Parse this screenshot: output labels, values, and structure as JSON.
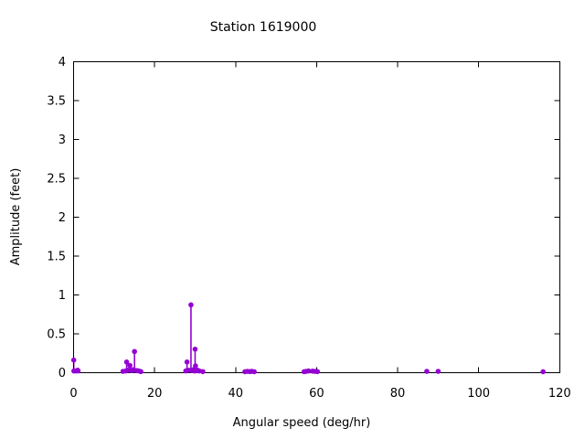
{
  "window": {
    "background": "#ffffff",
    "text_color": "#000000",
    "axis_color": "#000000"
  },
  "chart_data": {
    "type": "scatter",
    "style": "impulses+points",
    "title": "Station 1619000",
    "xlabel": "Angular speed (deg/hr)",
    "ylabel": "Amplitude (feet)",
    "xlim": [
      0,
      120
    ],
    "ylim": [
      0,
      4
    ],
    "x_ticks": [
      0,
      20,
      40,
      60,
      80,
      100,
      120
    ],
    "x_tick_labels": [
      "0",
      "20",
      "40",
      "60",
      "80",
      "100",
      "120"
    ],
    "y_ticks": [
      0,
      0.5,
      1,
      1.5,
      2,
      2.5,
      3,
      3.5,
      4
    ],
    "y_tick_labels": [
      "0",
      "0.5",
      "1",
      "1.5",
      "2",
      "2.5",
      "3",
      "3.5",
      "4"
    ],
    "grid": false,
    "legend": "none",
    "point_color": "#9400d3",
    "points": [
      [
        0.04,
        0.16
      ],
      [
        0.08,
        0.02
      ],
      [
        0.54,
        0.02
      ],
      [
        1.0,
        0.03
      ],
      [
        1.1,
        0.02
      ],
      [
        12.2,
        0.015
      ],
      [
        12.9,
        0.02
      ],
      [
        13.1,
        0.135
      ],
      [
        13.4,
        0.03
      ],
      [
        13.9,
        0.09
      ],
      [
        14.3,
        0.025
      ],
      [
        14.6,
        0.035
      ],
      [
        14.96,
        0.03
      ],
      [
        15.04,
        0.27
      ],
      [
        15.6,
        0.025
      ],
      [
        16.1,
        0.02
      ],
      [
        16.6,
        0.012
      ],
      [
        27.7,
        0.02
      ],
      [
        28.0,
        0.135
      ],
      [
        28.4,
        0.03
      ],
      [
        28.98,
        0.87
      ],
      [
        29.2,
        0.025
      ],
      [
        29.5,
        0.035
      ],
      [
        29.9,
        0.02
      ],
      [
        30.0,
        0.3
      ],
      [
        30.1,
        0.085
      ],
      [
        30.6,
        0.03
      ],
      [
        31.0,
        0.02
      ],
      [
        31.9,
        0.012
      ],
      [
        42.3,
        0.01
      ],
      [
        42.9,
        0.015
      ],
      [
        43.5,
        0.012
      ],
      [
        44.0,
        0.015
      ],
      [
        44.6,
        0.01
      ],
      [
        56.9,
        0.01
      ],
      [
        57.4,
        0.015
      ],
      [
        58.0,
        0.02
      ],
      [
        59.0,
        0.018
      ],
      [
        59.6,
        0.015
      ],
      [
        60.2,
        0.012
      ],
      [
        87.2,
        0.015
      ],
      [
        90.0,
        0.015
      ],
      [
        115.9,
        0.01
      ]
    ]
  }
}
